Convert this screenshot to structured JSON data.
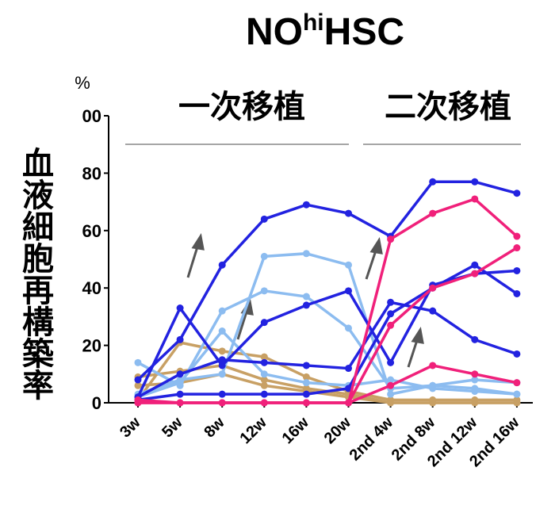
{
  "chart_data": {
    "type": "line",
    "title": [
      "NO",
      "hi",
      "HSC"
    ],
    "y_label": "血液細胞再構築率",
    "y_unit": "%",
    "annotations": [
      "一次移植",
      "二次移植"
    ],
    "categories": [
      "3w",
      "5w",
      "8w",
      "12w",
      "16w",
      "20w",
      "2nd 4w",
      "2nd 8w",
      "2nd 12w",
      "2nd 16w"
    ],
    "ylim": [
      0,
      100
    ],
    "yticks": [
      0,
      20,
      40,
      60,
      80,
      {
        "value": 100,
        "label": "00"
      }
    ],
    "series": [
      {
        "color": "#c8a064",
        "values": [
          1,
          21,
          18,
          16,
          9,
          4,
          1,
          1,
          1,
          1
        ]
      },
      {
        "color": "#c8a064",
        "values": [
          9,
          11,
          13,
          8,
          5,
          3,
          0,
          0,
          0,
          0
        ]
      },
      {
        "color": "#c8a064",
        "values": [
          6,
          7,
          10,
          6,
          4,
          2,
          0,
          0,
          0,
          0
        ]
      },
      {
        "color": "#8cbcf0",
        "values": [
          14,
          6,
          32,
          39,
          37,
          26,
          5,
          6,
          8,
          7
        ]
      },
      {
        "color": "#8cbcf0",
        "values": [
          3,
          8,
          10,
          51,
          52,
          48,
          3,
          6,
          5,
          3
        ]
      },
      {
        "color": "#8cbcf0",
        "values": [
          2,
          7,
          25,
          10,
          7,
          6,
          8,
          5,
          4,
          3
        ]
      },
      {
        "color": "#2222e0",
        "values": [
          8,
          22,
          48,
          64,
          69,
          66,
          58,
          77,
          77,
          73
        ]
      },
      {
        "color": "#2222e0",
        "values": [
          2,
          33,
          13,
          28,
          34,
          39,
          14,
          41,
          45,
          46
        ]
      },
      {
        "color": "#2222e0",
        "values": [
          2,
          10,
          15,
          14,
          13,
          12,
          35,
          32,
          22,
          17
        ]
      },
      {
        "color": "#2222e0",
        "values": [
          1,
          3,
          3,
          3,
          3,
          5,
          31,
          40,
          48,
          38
        ]
      },
      {
        "color": "#f0207a",
        "values": [
          0,
          0,
          0,
          0,
          0,
          0,
          57,
          66,
          71,
          58
        ]
      },
      {
        "color": "#f0207a",
        "values": [
          0,
          0,
          0,
          0,
          0,
          0,
          27,
          40,
          45,
          54
        ]
      },
      {
        "color": "#f0207a",
        "values": [
          1,
          0,
          0,
          0,
          0,
          0,
          6,
          13,
          10,
          7
        ]
      }
    ]
  }
}
